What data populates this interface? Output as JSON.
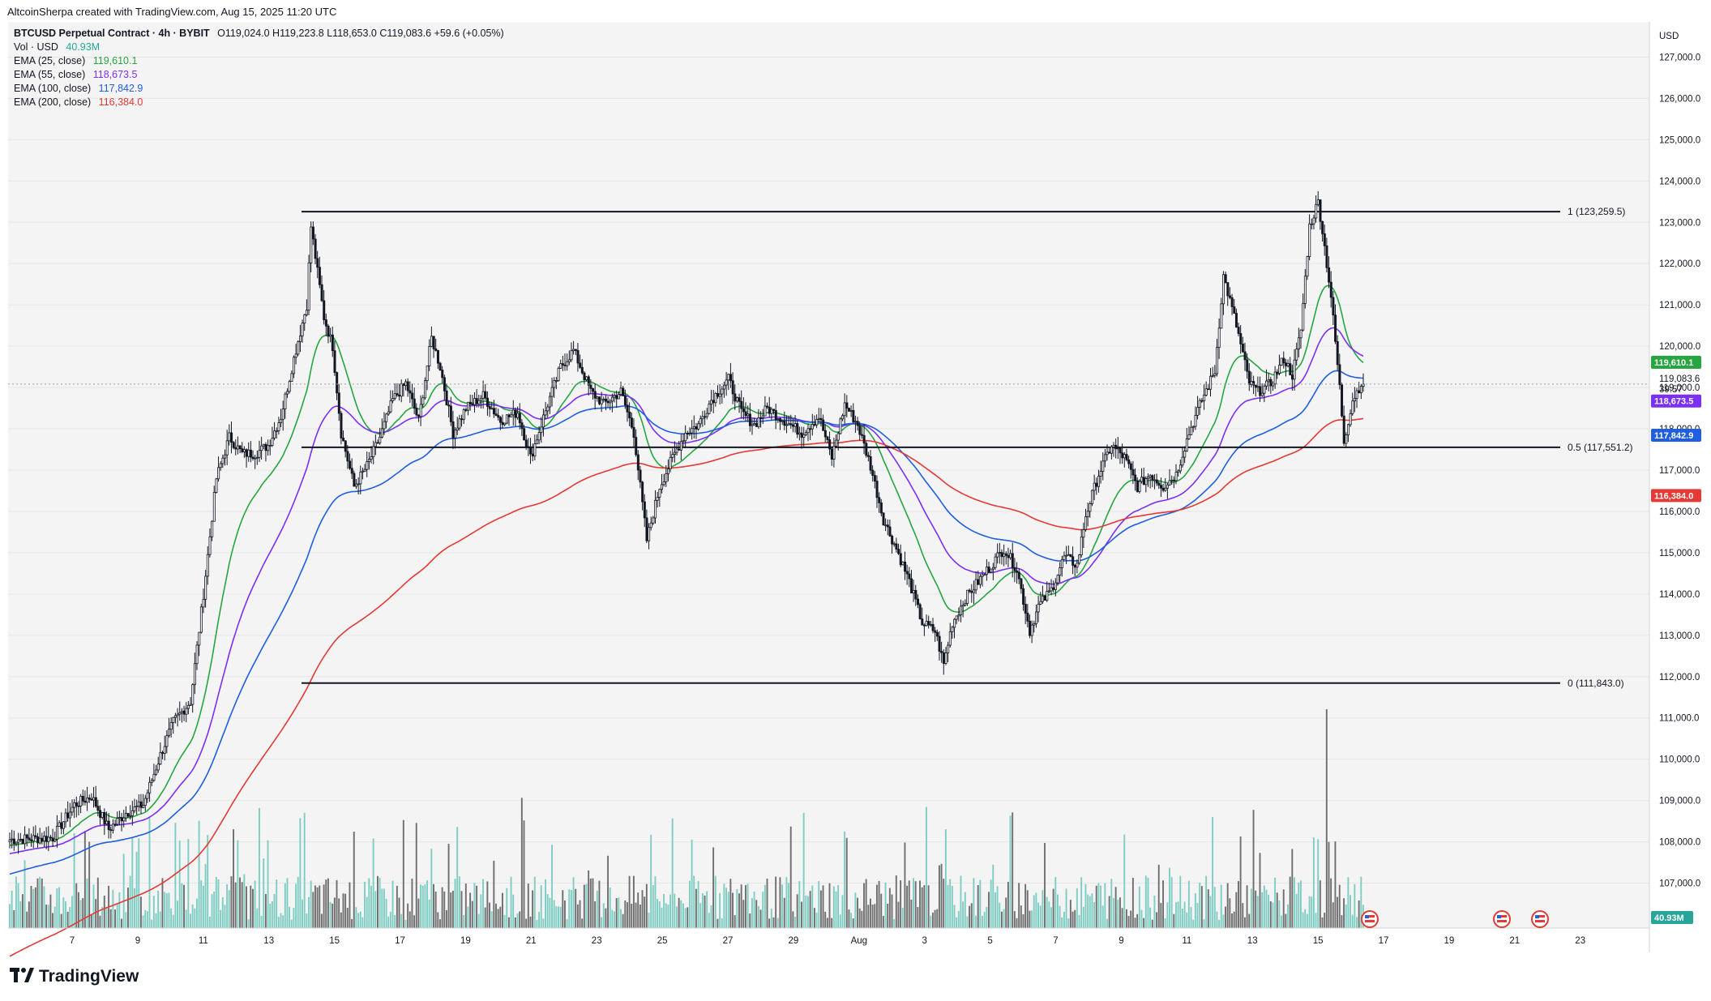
{
  "header": {
    "credit": "AltcoinSherpa created with TradingView.com, Aug 15, 2025 11:20 UTC"
  },
  "legend": {
    "symbol": "BTCUSD Perpetual Contract · 4h · BYBIT",
    "ohlc": "O119,024.0  H119,223.8  L118,653.0  C119,083.6  +59.6 (+0.05%)",
    "vol_label": "Vol · USD",
    "vol_value": "40.93M",
    "emas": [
      {
        "label": "EMA (25, close)",
        "value": "119,610.1",
        "color": "#26a641"
      },
      {
        "label": "EMA (55, close)",
        "value": "118,673.5",
        "color": "#7b2ff7"
      },
      {
        "label": "EMA (100, close)",
        "value": "117,842.9",
        "color": "#1f5ee0"
      },
      {
        "label": "EMA (200, close)",
        "value": "116,384.0",
        "color": "#e53935"
      }
    ]
  },
  "footer": {
    "brand": "TradingView"
  },
  "chart_data": {
    "type": "candlestick",
    "currency_label": "USD",
    "ylim": [
      106500,
      127500
    ],
    "y_ticks": [
      "107,000.0",
      "108,000.0",
      "109,000.0",
      "110,000.0",
      "111,000.0",
      "112,000.0",
      "113,000.0",
      "114,000.0",
      "115,000.0",
      "116,000.0",
      "117,000.0",
      "118,000.0",
      "119,000.0",
      "120,000.0",
      "121,000.0",
      "122,000.0",
      "123,000.0",
      "124,000.0",
      "125,000.0",
      "126,000.0",
      "127,000.0"
    ],
    "x_ticks": [
      "7",
      "9",
      "11",
      "13",
      "15",
      "17",
      "19",
      "21",
      "23",
      "25",
      "27",
      "29",
      "Aug",
      "3",
      "5",
      "7",
      "9",
      "11",
      "13",
      "15",
      "17",
      "19",
      "21",
      "23"
    ],
    "fib_levels": [
      {
        "label": "1 (123,259.5)",
        "price": 123259.5
      },
      {
        "label": "0.5 (117,551.2)",
        "price": 117551.2
      },
      {
        "label": "0 (111,843.0)",
        "price": 111843.0
      }
    ],
    "price_badges": [
      {
        "text": "119,610.1",
        "price": 119610.1,
        "color": "#26a641"
      },
      {
        "text": "118,673.5",
        "price": 118673.5,
        "color": "#7b2ff7"
      },
      {
        "text": "117,842.9",
        "price": 117842.9,
        "color": "#1f5ee0"
      },
      {
        "text": "116,384.0",
        "price": 116384.0,
        "color": "#e53935"
      }
    ],
    "last_price": {
      "text": "119,083.6",
      "countdown": "39:57",
      "price": 119083.6
    },
    "volume_badge": "40.93M",
    "close_path": [
      [
        0,
        108050
      ],
      [
        20,
        108100
      ],
      [
        30,
        108900
      ],
      [
        38,
        109100
      ],
      [
        46,
        108300
      ],
      [
        54,
        108700
      ],
      [
        62,
        108900
      ],
      [
        70,
        110100
      ],
      [
        76,
        110900
      ],
      [
        84,
        111400
      ],
      [
        90,
        114000
      ],
      [
        96,
        116800
      ],
      [
        102,
        117800
      ],
      [
        108,
        117400
      ],
      [
        114,
        117400
      ],
      [
        120,
        117600
      ],
      [
        126,
        118300
      ],
      [
        132,
        119700
      ],
      [
        138,
        121000
      ],
      [
        140,
        122900
      ],
      [
        146,
        120700
      ],
      [
        150,
        120000
      ],
      [
        154,
        117900
      ],
      [
        160,
        116600
      ],
      [
        166,
        117100
      ],
      [
        172,
        117800
      ],
      [
        178,
        118700
      ],
      [
        184,
        119100
      ],
      [
        190,
        118200
      ],
      [
        196,
        120200
      ],
      [
        200,
        119500
      ],
      [
        206,
        117900
      ],
      [
        212,
        118500
      ],
      [
        220,
        118800
      ],
      [
        228,
        118200
      ],
      [
        236,
        118400
      ],
      [
        242,
        117300
      ],
      [
        250,
        118600
      ],
      [
        256,
        119500
      ],
      [
        262,
        119900
      ],
      [
        270,
        118900
      ],
      [
        276,
        118600
      ],
      [
        284,
        118900
      ],
      [
        290,
        117900
      ],
      [
        296,
        115300
      ],
      [
        302,
        116600
      ],
      [
        308,
        117300
      ],
      [
        314,
        117900
      ],
      [
        320,
        118100
      ],
      [
        326,
        118700
      ],
      [
        334,
        119200
      ],
      [
        340,
        118400
      ],
      [
        346,
        118100
      ],
      [
        352,
        118500
      ],
      [
        360,
        118200
      ],
      [
        368,
        117900
      ],
      [
        376,
        118300
      ],
      [
        382,
        117300
      ],
      [
        388,
        118600
      ],
      [
        394,
        118100
      ],
      [
        400,
        117100
      ],
      [
        406,
        115800
      ],
      [
        412,
        115100
      ],
      [
        418,
        114300
      ],
      [
        424,
        113300
      ],
      [
        430,
        113100
      ],
      [
        434,
        112300
      ],
      [
        438,
        113300
      ],
      [
        444,
        113900
      ],
      [
        450,
        114300
      ],
      [
        456,
        114700
      ],
      [
        462,
        115100
      ],
      [
        468,
        114600
      ],
      [
        474,
        113100
      ],
      [
        478,
        113700
      ],
      [
        484,
        114100
      ],
      [
        490,
        114900
      ],
      [
        496,
        114700
      ],
      [
        500,
        115900
      ],
      [
        506,
        116900
      ],
      [
        512,
        117600
      ],
      [
        518,
        117300
      ],
      [
        524,
        116600
      ],
      [
        530,
        116900
      ],
      [
        536,
        116600
      ],
      [
        542,
        116900
      ],
      [
        548,
        117900
      ],
      [
        554,
        118700
      ],
      [
        560,
        119400
      ],
      [
        564,
        121700
      ],
      [
        570,
        120500
      ],
      [
        576,
        119100
      ],
      [
        580,
        118900
      ],
      [
        586,
        119100
      ],
      [
        592,
        119700
      ],
      [
        596,
        119300
      ],
      [
        600,
        120400
      ],
      [
        604,
        122900
      ],
      [
        608,
        123500
      ],
      [
        610,
        122800
      ],
      [
        614,
        121200
      ],
      [
        618,
        119000
      ],
      [
        620,
        117700
      ],
      [
        624,
        118700
      ],
      [
        628,
        119100
      ]
    ]
  }
}
